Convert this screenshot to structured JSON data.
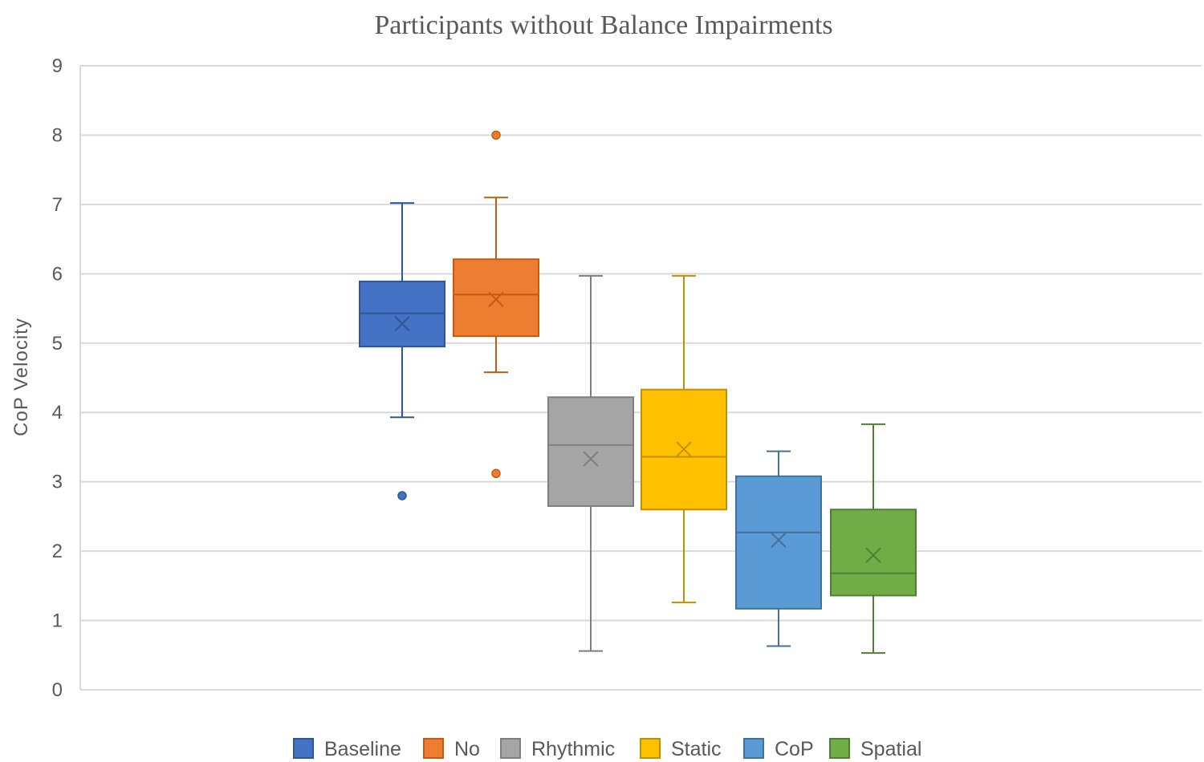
{
  "chart_data": {
    "type": "boxplot",
    "title": "Participants without Balance Impairments",
    "xlabel": "",
    "ylabel": "CoP  Velocity",
    "ylim": [
      0,
      9
    ],
    "yticks": [
      "0",
      "1",
      "2",
      "3",
      "4",
      "5",
      "6",
      "7",
      "8",
      "9"
    ],
    "grid": true,
    "legend_position": "bottom",
    "series": [
      {
        "name": "Baseline",
        "color": "#4472C4",
        "stroke": "#2F5597",
        "min": 3.93,
        "q1": 4.95,
        "median": 5.43,
        "q3": 5.89,
        "max": 7.02,
        "mean": 5.28,
        "outliers": [
          2.8
        ]
      },
      {
        "name": "No",
        "color": "#ED7D31",
        "stroke": "#C55A11",
        "min": 4.58,
        "q1": 5.1,
        "median": 5.7,
        "q3": 6.21,
        "max": 7.1,
        "mean": 5.63,
        "outliers": [
          8.0,
          3.12
        ]
      },
      {
        "name": "Rhythmic",
        "color": "#A5A5A5",
        "stroke": "#7F7F7F",
        "min": 0.56,
        "q1": 2.65,
        "median": 3.53,
        "q3": 4.22,
        "max": 5.97,
        "mean": 3.33,
        "outliers": []
      },
      {
        "name": "Static",
        "color": "#FFC000",
        "stroke": "#BF9000",
        "min": 1.26,
        "q1": 2.6,
        "median": 3.36,
        "q3": 4.33,
        "max": 5.97,
        "mean": 3.47,
        "outliers": []
      },
      {
        "name": "CoP",
        "color": "#5B9BD5",
        "stroke": "#41719C",
        "min": 0.63,
        "q1": 1.17,
        "median": 2.27,
        "q3": 3.08,
        "max": 3.44,
        "mean": 2.16,
        "outliers": []
      },
      {
        "name": "Spatial",
        "color": "#70AD47",
        "stroke": "#507E32",
        "min": 0.53,
        "q1": 1.36,
        "median": 1.68,
        "q3": 2.6,
        "max": 3.83,
        "mean": 1.94,
        "outliers": []
      }
    ]
  }
}
